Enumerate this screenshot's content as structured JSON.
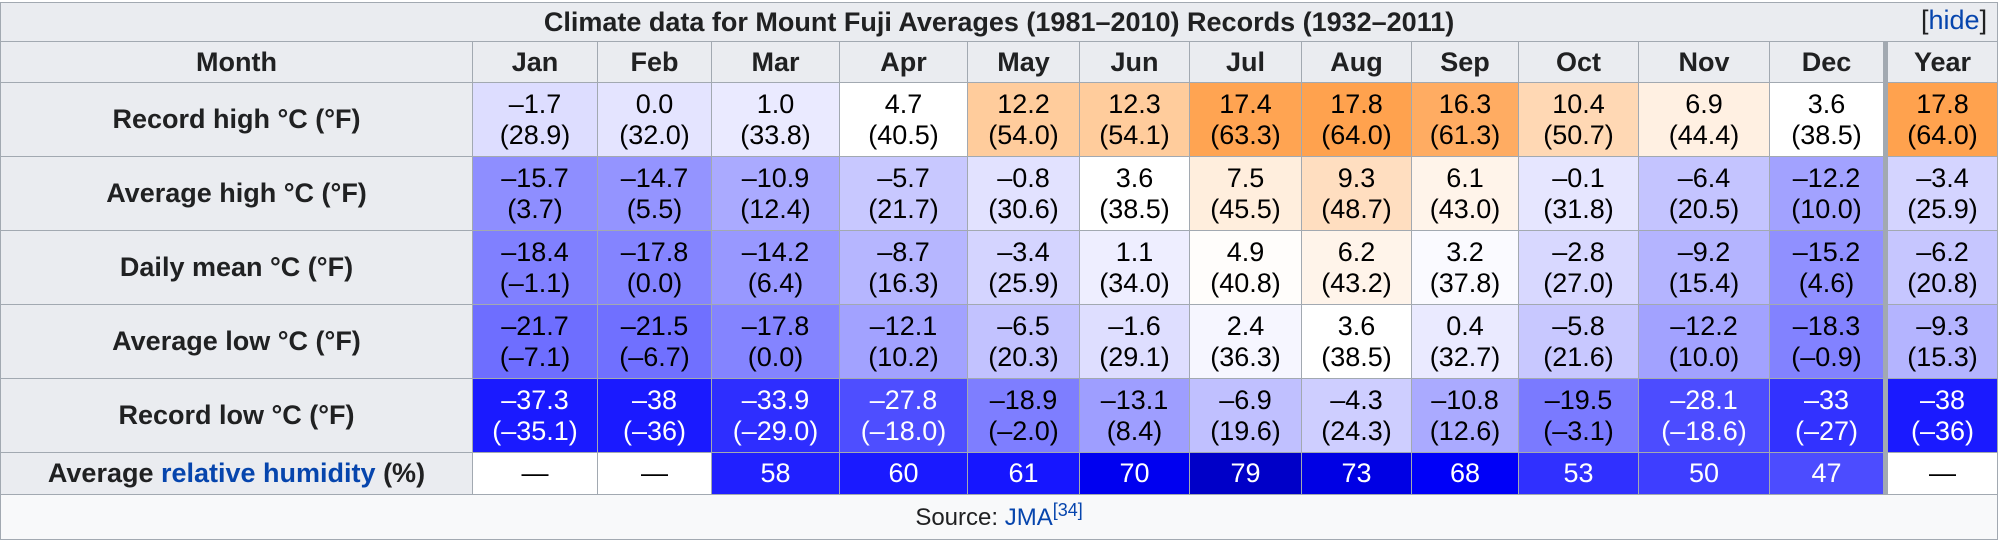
{
  "caption": "Climate data for Mount Fuji Averages (1981–2010) Records (1932–2011)",
  "hide_prefix": "[",
  "hide_label": "hide",
  "hide_suffix": "]",
  "header": {
    "month_label": "Month",
    "months": [
      "Jan",
      "Feb",
      "Mar",
      "Apr",
      "May",
      "Jun",
      "Jul",
      "Aug",
      "Sep",
      "Oct",
      "Nov",
      "Dec"
    ],
    "year_label": "Year"
  },
  "rows": [
    {
      "label": "Record high °C (°F)",
      "cells": [
        {
          "c": "–1.7",
          "f": "(28.9)",
          "bg": "#ddddff",
          "fg": "#000000"
        },
        {
          "c": "0.0",
          "f": "(32.0)",
          "bg": "#e4e4ff",
          "fg": "#000000"
        },
        {
          "c": "1.0",
          "f": "(33.8)",
          "bg": "#eaeaff",
          "fg": "#000000"
        },
        {
          "c": "4.7",
          "f": "(40.5)",
          "bg": "#ffffff",
          "fg": "#000000"
        },
        {
          "c": "12.2",
          "f": "(54.0)",
          "bg": "#ffcc9c",
          "fg": "#000000"
        },
        {
          "c": "12.3",
          "f": "(54.1)",
          "bg": "#ffcc9c",
          "fg": "#000000"
        },
        {
          "c": "17.4",
          "f": "(63.3)",
          "bg": "#ffa452",
          "fg": "#000000"
        },
        {
          "c": "17.8",
          "f": "(64.0)",
          "bg": "#ffa24e",
          "fg": "#000000"
        },
        {
          "c": "16.3",
          "f": "(61.3)",
          "bg": "#ffac62",
          "fg": "#000000"
        },
        {
          "c": "10.4",
          "f": "(50.7)",
          "bg": "#ffd8b4",
          "fg": "#000000"
        },
        {
          "c": "6.9",
          "f": "(44.4)",
          "bg": "#fff0e2",
          "fg": "#000000"
        },
        {
          "c": "3.6",
          "f": "(38.5)",
          "bg": "#ffffff",
          "fg": "#000000"
        }
      ],
      "year": {
        "c": "17.8",
        "f": "(64.0)",
        "bg": "#ffa24e",
        "fg": "#000000"
      }
    },
    {
      "label": "Average high °C (°F)",
      "cells": [
        {
          "c": "–15.7",
          "f": "(3.7)",
          "bg": "#8e8eff",
          "fg": "#000000"
        },
        {
          "c": "–14.7",
          "f": "(5.5)",
          "bg": "#9494ff",
          "fg": "#000000"
        },
        {
          "c": "–10.9",
          "f": "(12.4)",
          "bg": "#aaaaff",
          "fg": "#000000"
        },
        {
          "c": "–5.7",
          "f": "(21.7)",
          "bg": "#c8c8ff",
          "fg": "#000000"
        },
        {
          "c": "–0.8",
          "f": "(30.6)",
          "bg": "#e2e2ff",
          "fg": "#000000"
        },
        {
          "c": "3.6",
          "f": "(38.5)",
          "bg": "#ffffff",
          "fg": "#000000"
        },
        {
          "c": "7.5",
          "f": "(45.5)",
          "bg": "#ffeedd",
          "fg": "#000000"
        },
        {
          "c": "9.3",
          "f": "(48.7)",
          "bg": "#ffdec0",
          "fg": "#000000"
        },
        {
          "c": "6.1",
          "f": "(43.0)",
          "bg": "#fff4ea",
          "fg": "#000000"
        },
        {
          "c": "–0.1",
          "f": "(31.8)",
          "bg": "#e6e6ff",
          "fg": "#000000"
        },
        {
          "c": "–6.4",
          "f": "(20.5)",
          "bg": "#c4c4ff",
          "fg": "#000000"
        },
        {
          "c": "–12.2",
          "f": "(10.0)",
          "bg": "#a2a2ff",
          "fg": "#000000"
        }
      ],
      "year": {
        "c": "–3.4",
        "f": "(25.9)",
        "bg": "#d4d4ff",
        "fg": "#000000"
      }
    },
    {
      "label": "Daily mean °C (°F)",
      "cells": [
        {
          "c": "–18.4",
          "f": "(–1.1)",
          "bg": "#8080ff",
          "fg": "#000000"
        },
        {
          "c": "–17.8",
          "f": "(0.0)",
          "bg": "#8484ff",
          "fg": "#000000"
        },
        {
          "c": "–14.2",
          "f": "(6.4)",
          "bg": "#9898ff",
          "fg": "#000000"
        },
        {
          "c": "–8.7",
          "f": "(16.3)",
          "bg": "#b6b6ff",
          "fg": "#000000"
        },
        {
          "c": "–3.4",
          "f": "(25.9)",
          "bg": "#d4d4ff",
          "fg": "#000000"
        },
        {
          "c": "1.1",
          "f": "(34.0)",
          "bg": "#eeeeff",
          "fg": "#000000"
        },
        {
          "c": "4.9",
          "f": "(40.8)",
          "bg": "#fffdfb",
          "fg": "#000000"
        },
        {
          "c": "6.2",
          "f": "(43.2)",
          "bg": "#fff4ea",
          "fg": "#000000"
        },
        {
          "c": "3.2",
          "f": "(37.8)",
          "bg": "#fafaff",
          "fg": "#000000"
        },
        {
          "c": "–2.8",
          "f": "(27.0)",
          "bg": "#d8d8ff",
          "fg": "#000000"
        },
        {
          "c": "–9.2",
          "f": "(15.4)",
          "bg": "#b4b4ff",
          "fg": "#000000"
        },
        {
          "c": "–15.2",
          "f": "(4.6)",
          "bg": "#9090ff",
          "fg": "#000000"
        }
      ],
      "year": {
        "c": "–6.2",
        "f": "(20.8)",
        "bg": "#c6c6ff",
        "fg": "#000000"
      }
    },
    {
      "label": "Average low °C (°F)",
      "cells": [
        {
          "c": "–21.7",
          "f": "(–7.1)",
          "bg": "#6e6eff",
          "fg": "#000000"
        },
        {
          "c": "–21.5",
          "f": "(–6.7)",
          "bg": "#7070ff",
          "fg": "#000000"
        },
        {
          "c": "–17.8",
          "f": "(0.0)",
          "bg": "#8484ff",
          "fg": "#000000"
        },
        {
          "c": "–12.1",
          "f": "(10.2)",
          "bg": "#a2a2ff",
          "fg": "#000000"
        },
        {
          "c": "–6.5",
          "f": "(20.3)",
          "bg": "#c2c2ff",
          "fg": "#000000"
        },
        {
          "c": "–1.6",
          "f": "(29.1)",
          "bg": "#dedeff",
          "fg": "#000000"
        },
        {
          "c": "2.4",
          "f": "(36.3)",
          "bg": "#f6f6ff",
          "fg": "#000000"
        },
        {
          "c": "3.6",
          "f": "(38.5)",
          "bg": "#ffffff",
          "fg": "#000000"
        },
        {
          "c": "0.4",
          "f": "(32.7)",
          "bg": "#eaeaff",
          "fg": "#000000"
        },
        {
          "c": "–5.8",
          "f": "(21.6)",
          "bg": "#c8c8ff",
          "fg": "#000000"
        },
        {
          "c": "–12.2",
          "f": "(10.0)",
          "bg": "#a2a2ff",
          "fg": "#000000"
        },
        {
          "c": "–18.3",
          "f": "(–0.9)",
          "bg": "#8282ff",
          "fg": "#000000"
        }
      ],
      "year": {
        "c": "–9.3",
        "f": "(15.3)",
        "bg": "#b4b4ff",
        "fg": "#000000"
      }
    },
    {
      "label": "Record low °C (°F)",
      "cells": [
        {
          "c": "–37.3",
          "f": "(–35.1)",
          "bg": "#1a1aff",
          "fg": "#ffffff"
        },
        {
          "c": "–38",
          "f": "(–36)",
          "bg": "#1a1aff",
          "fg": "#ffffff"
        },
        {
          "c": "–33.9",
          "f": "(–29.0)",
          "bg": "#2e2eff",
          "fg": "#ffffff"
        },
        {
          "c": "–27.8",
          "f": "(–18.0)",
          "bg": "#4e4eff",
          "fg": "#ffffff"
        },
        {
          "c": "–18.9",
          "f": "(–2.0)",
          "bg": "#7e7eff",
          "fg": "#000000"
        },
        {
          "c": "–13.1",
          "f": "(8.4)",
          "bg": "#9e9eff",
          "fg": "#000000"
        },
        {
          "c": "–6.9",
          "f": "(19.6)",
          "bg": "#c0c0ff",
          "fg": "#000000"
        },
        {
          "c": "–4.3",
          "f": "(24.3)",
          "bg": "#ceceff",
          "fg": "#000000"
        },
        {
          "c": "–10.8",
          "f": "(12.6)",
          "bg": "#aaaaff",
          "fg": "#000000"
        },
        {
          "c": "–19.5",
          "f": "(–3.1)",
          "bg": "#7a7aff",
          "fg": "#000000"
        },
        {
          "c": "–28.1",
          "f": "(–18.6)",
          "bg": "#4c4cff",
          "fg": "#ffffff"
        },
        {
          "c": "–33",
          "f": "(–27)",
          "bg": "#3232ff",
          "fg": "#ffffff"
        }
      ],
      "year": {
        "c": "–38",
        "f": "(–36)",
        "bg": "#1a1aff",
        "fg": "#ffffff"
      }
    }
  ],
  "humidity": {
    "label_prefix": "Average ",
    "label_link": "relative humidity",
    "label_suffix": " (%)",
    "cells": [
      {
        "v": "—",
        "bg": "#ffffff",
        "fg": "#000000"
      },
      {
        "v": "—",
        "bg": "#ffffff",
        "fg": "#000000"
      },
      {
        "v": "58",
        "bg": "#2020ff",
        "fg": "#ffffff"
      },
      {
        "v": "60",
        "bg": "#1a1aff",
        "fg": "#ffffff"
      },
      {
        "v": "61",
        "bg": "#1616ff",
        "fg": "#ffffff"
      },
      {
        "v": "70",
        "bg": "#0000f0",
        "fg": "#ffffff"
      },
      {
        "v": "79",
        "bg": "#0000c8",
        "fg": "#ffffff"
      },
      {
        "v": "73",
        "bg": "#0000e4",
        "fg": "#ffffff"
      },
      {
        "v": "68",
        "bg": "#0000f8",
        "fg": "#ffffff"
      },
      {
        "v": "53",
        "bg": "#3030ff",
        "fg": "#ffffff"
      },
      {
        "v": "50",
        "bg": "#3e3eff",
        "fg": "#ffffff"
      },
      {
        "v": "47",
        "bg": "#4c4cff",
        "fg": "#ffffff"
      }
    ],
    "year": {
      "v": "—",
      "bg": "#ffffff",
      "fg": "#000000"
    }
  },
  "source": {
    "prefix": "Source: ",
    "link": "JMA",
    "ref": "[34]"
  }
}
